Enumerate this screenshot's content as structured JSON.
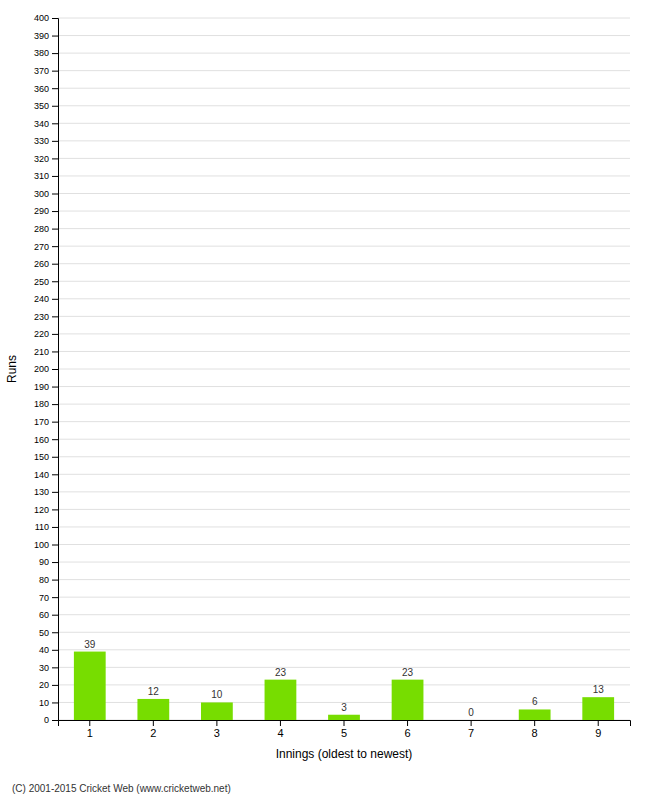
{
  "chart_data": {
    "type": "bar",
    "categories": [
      "1",
      "2",
      "3",
      "4",
      "5",
      "6",
      "7",
      "8",
      "9"
    ],
    "values": [
      39,
      12,
      10,
      23,
      3,
      23,
      0,
      6,
      13
    ],
    "color": "#77dd00",
    "xlabel": "Innings (oldest to newest)",
    "ylabel": "Runs",
    "ylim": [
      0,
      400
    ],
    "yticks": [
      0,
      10,
      20,
      30,
      40,
      50,
      60,
      70,
      80,
      90,
      100,
      110,
      120,
      130,
      140,
      150,
      160,
      170,
      180,
      190,
      200,
      210,
      220,
      230,
      240,
      250,
      260,
      270,
      280,
      290,
      300,
      310,
      320,
      330,
      340,
      350,
      360,
      370,
      380,
      390,
      400
    ],
    "grid": true,
    "data_labels": true,
    "annotations": [
      "(C) 2001-2015 Cricket Web (www.cricketweb.net)"
    ]
  }
}
